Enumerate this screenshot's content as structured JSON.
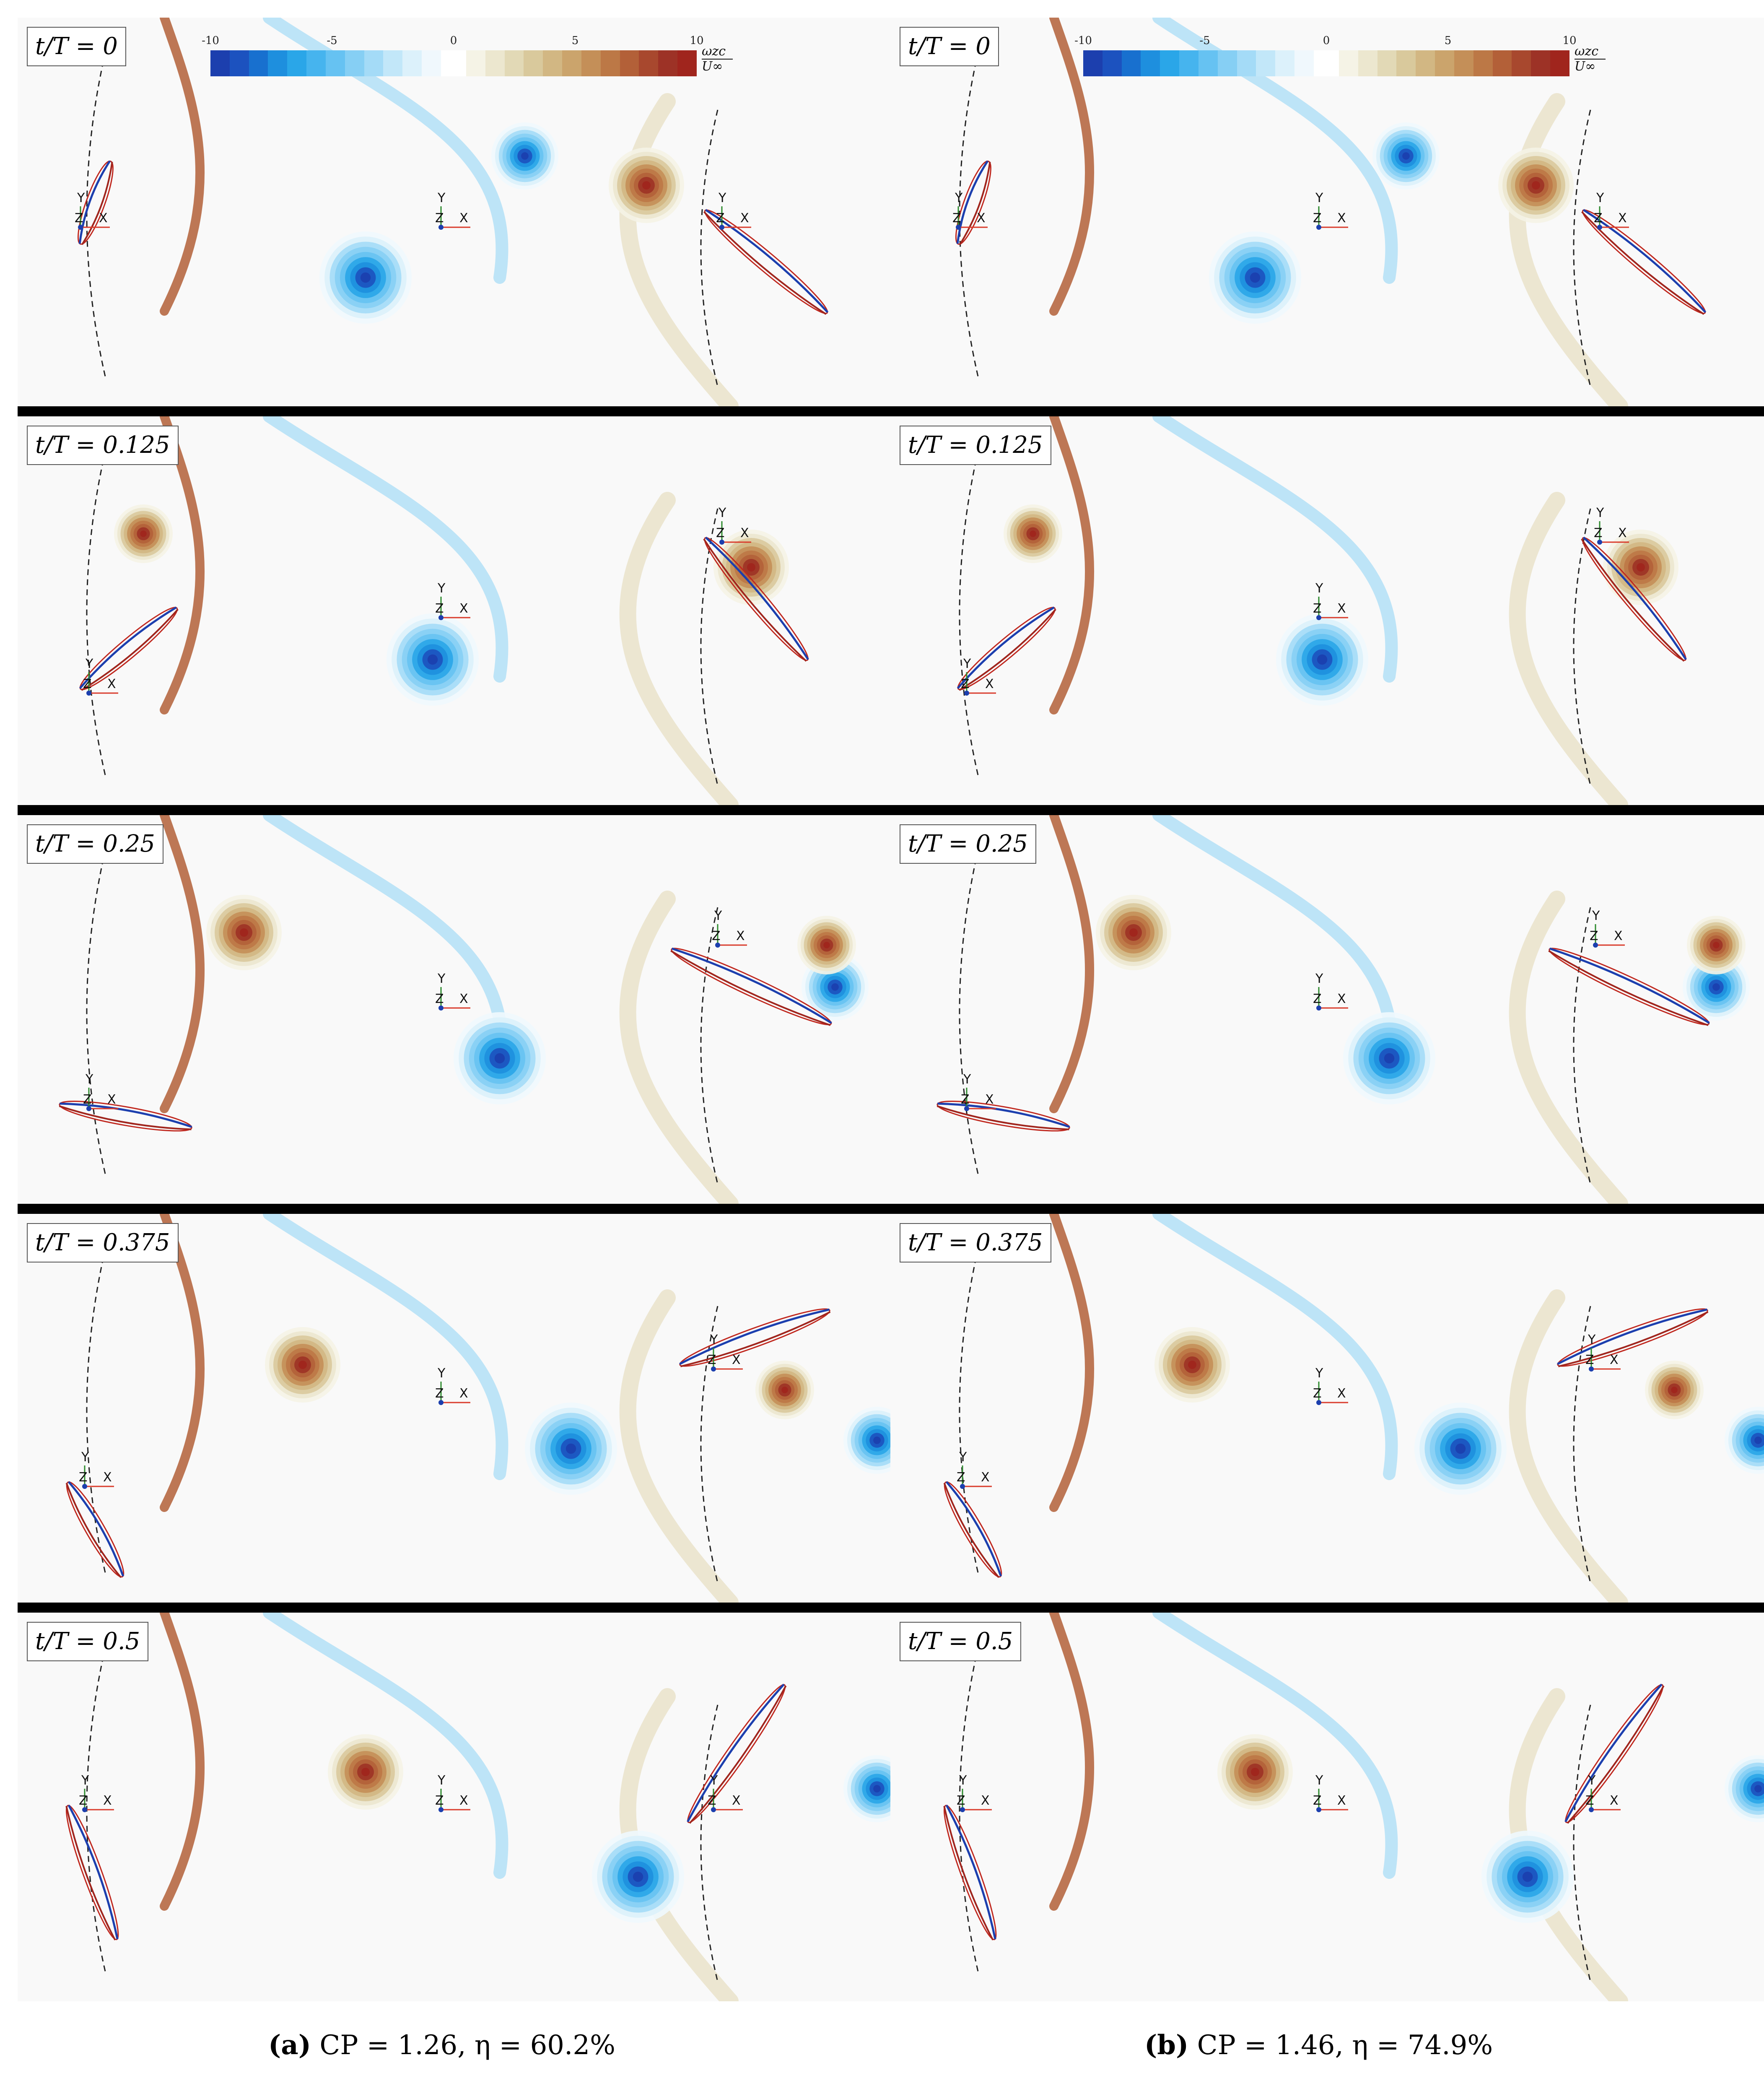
{
  "colorbar": {
    "ticks": [
      "-10",
      "-5",
      "0",
      "5",
      "10"
    ],
    "variable_label_top": "ωzc",
    "variable_label_bottom": "U∞",
    "negative_colors": [
      "#1c3fae",
      "#1c52bf",
      "#1870cf",
      "#1e8fde",
      "#2aa6e8",
      "#46b4ee",
      "#66c2f2",
      "#86cff4",
      "#a4dbf7",
      "#c2e7f9",
      "#dcf1fb",
      "#f0f8fd"
    ],
    "positive_colors": [
      "#f5f3e6",
      "#ece7cf",
      "#e2d9b6",
      "#d9c99c",
      "#d2b783",
      "#cba46c",
      "#c48f58",
      "#bc7846",
      "#b36038",
      "#a8482e",
      "#9d3226",
      "#a0251d"
    ]
  },
  "panel_labels": [
    "t/T = 0",
    "t/T = 0.125",
    "t/T = 0.25",
    "t/T = 0.375",
    "t/T = 0.5"
  ],
  "axis_labels": {
    "x": "X",
    "y": "Y",
    "z": "Z"
  },
  "captions": {
    "a": {
      "tag": "(a)",
      "text": " CP = 1.26, η = 60.2%"
    },
    "b": {
      "tag": "(b)",
      "text": " CP = 1.46, η = 74.9%"
    }
  },
  "colors": {
    "negative_vorticity": "#1c3fae",
    "positive_vorticity": "#a0251d",
    "background": "#f9f9f9"
  }
}
